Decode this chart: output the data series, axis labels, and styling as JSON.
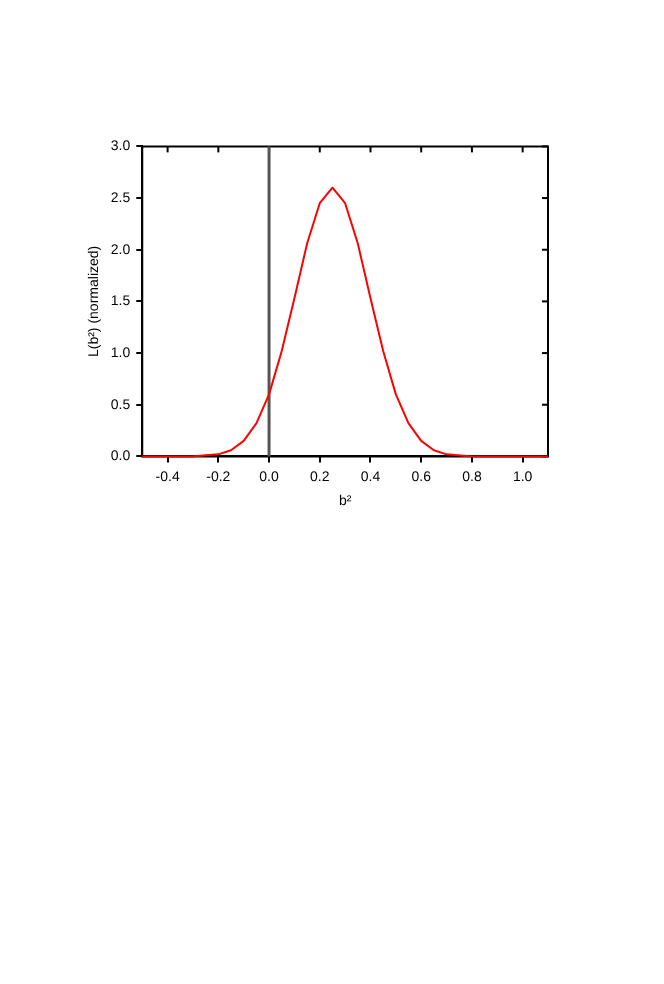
{
  "chart_data": {
    "type": "line",
    "xlabel": "b²",
    "ylabel": "L(b²) (normalized)",
    "x": [
      -0.5,
      -0.4,
      -0.3,
      -0.25,
      -0.2,
      -0.15,
      -0.1,
      -0.05,
      0,
      0.05,
      0.1,
      0.15,
      0.2,
      0.25,
      0.3,
      0.35,
      0.4,
      0.45,
      0.5,
      0.55,
      0.6,
      0.65,
      0.7,
      0.8,
      0.9,
      1.0,
      1.1
    ],
    "series": [
      {
        "color": "#ff0000",
        "values": [
          0,
          0,
          0,
          0.01,
          0.02,
          0.06,
          0.15,
          0.32,
          0.6,
          1.02,
          1.53,
          2.06,
          2.45,
          2.6,
          2.45,
          2.06,
          1.53,
          1.02,
          0.6,
          0.32,
          0.15,
          0.06,
          0.02,
          0,
          0,
          0,
          0
        ]
      }
    ],
    "xlim": [
      -0.5,
      1.1
    ],
    "ylim": [
      0,
      3
    ],
    "xticks": [
      -0.4,
      -0.2,
      {
        "value": 0,
        "label": "0.0"
      },
      0.2,
      0.4,
      0.6,
      0.8,
      {
        "value": 1,
        "label": "1.0"
      }
    ],
    "yticks": [
      {
        "value": 0,
        "label": "0.0"
      },
      0.5,
      {
        "value": 1,
        "label": "1.0"
      },
      1.5,
      {
        "value": 2,
        "label": "2.0"
      },
      2.5,
      {
        "value": 3,
        "label": "3.0"
      }
    ],
    "ref_lines": [
      {
        "axis": "x",
        "value": 0,
        "color": "#555555"
      }
    ],
    "grid": false,
    "legend": false,
    "marker": "none",
    "line_style": "solid"
  }
}
